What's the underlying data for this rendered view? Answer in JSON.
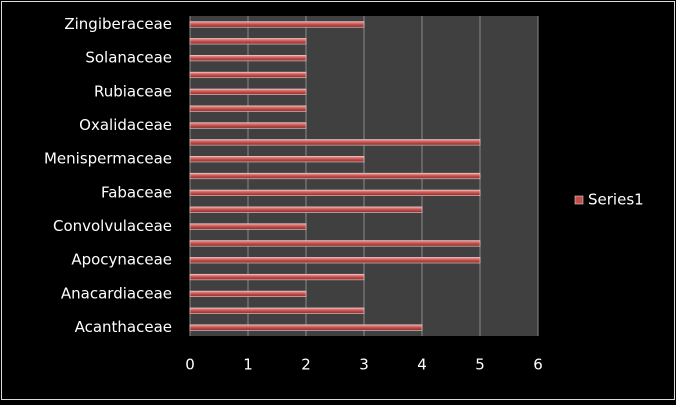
{
  "chart_data": {
    "type": "bar",
    "orientation": "horizontal",
    "categories": [
      "Acanthaceae",
      null,
      "Anacardiaceae",
      null,
      "Apocynaceae",
      null,
      "Convolvulaceae",
      null,
      "Fabaceae",
      null,
      "Menispermaceae",
      null,
      "Oxalidaceae",
      null,
      "Rubiaceae",
      null,
      "Solanaceae",
      null,
      "Zingiberaceae"
    ],
    "series": [
      {
        "name": "Series1",
        "color": "#c0504d",
        "values": [
          4,
          3,
          2,
          3,
          5,
          5,
          2,
          4,
          5,
          5,
          3,
          5,
          2,
          2,
          2,
          2,
          2,
          2,
          3
        ]
      }
    ],
    "xlim": [
      0,
      6
    ],
    "xticks": [
      0,
      1,
      2,
      3,
      4,
      5,
      6
    ],
    "grid": true,
    "legend": "right"
  }
}
